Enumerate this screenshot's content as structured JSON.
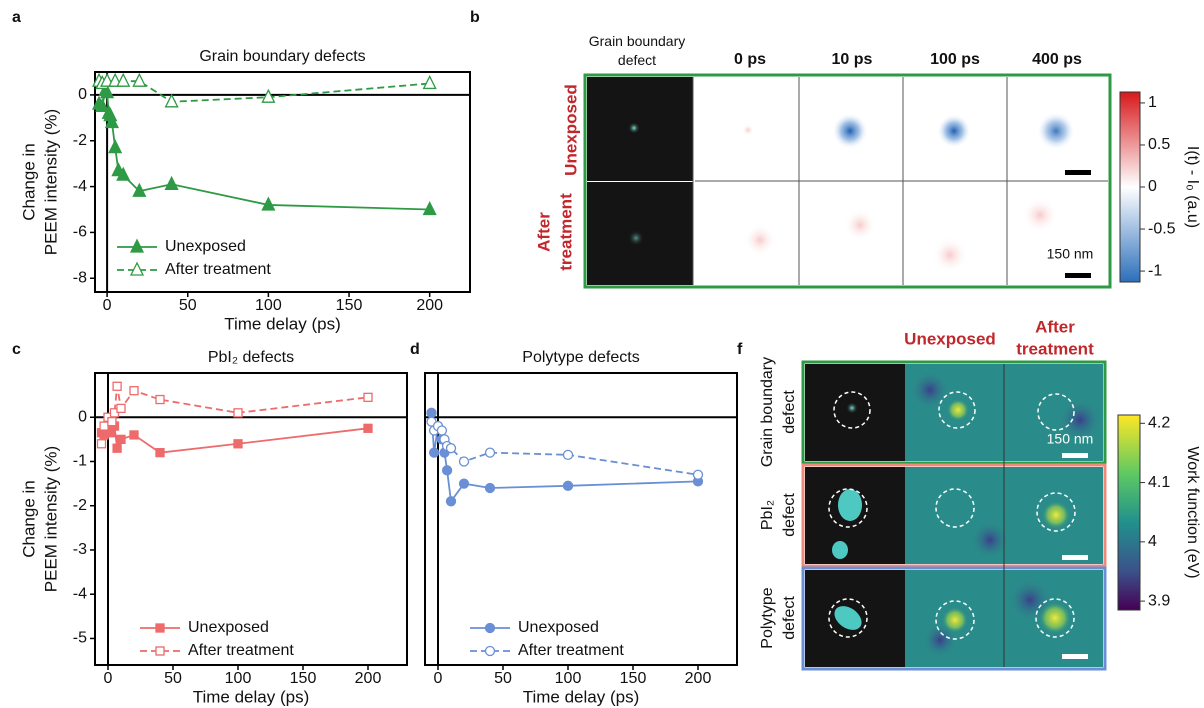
{
  "panel_labels": [
    "a",
    "b",
    "c",
    "d",
    "f"
  ],
  "chart_data": [
    {
      "type": "line",
      "title": "Grain boundary defects",
      "xlabel": "Time delay (ps)",
      "ylabel": [
        "Change in",
        "PEEM intensity (%)"
      ],
      "xlim": [
        -7.5,
        225
      ],
      "ylim": [
        -8.6,
        1
      ],
      "xticks": [
        0,
        50,
        100,
        150,
        200
      ],
      "yticks": [
        0,
        -2,
        -4,
        -6,
        -8
      ],
      "legend": "lower left",
      "series": [
        {
          "name": "Unexposed",
          "color": "#2e9a45",
          "marker": "triangle",
          "dashed": false,
          "x": [
            -5,
            -3,
            -1,
            0,
            1,
            2,
            3,
            5,
            7,
            10,
            20,
            40,
            100,
            200
          ],
          "values": [
            -0.4,
            -0.5,
            0.2,
            0.1,
            -0.8,
            -0.9,
            -1.2,
            -2.3,
            -3.3,
            -3.5,
            -4.2,
            -3.9,
            -4.8,
            -5.0
          ]
        },
        {
          "name": "After treatment",
          "color": "#2e9a45",
          "marker": "triangle",
          "dashed": true,
          "x": [
            -5,
            -3,
            0,
            5,
            10,
            20,
            40,
            100,
            200
          ],
          "values": [
            0.6,
            0.5,
            0.6,
            0.6,
            0.6,
            0.6,
            -0.3,
            -0.1,
            0.5
          ]
        }
      ]
    },
    {
      "type": "line",
      "title": "PbI₂ defects",
      "xlabel": "Time delay (ps)",
      "ylabel": [
        "Change in",
        "PEEM intensity (%)"
      ],
      "xlim": [
        -10,
        230
      ],
      "ylim": [
        -5.6,
        1
      ],
      "xticks": [
        0,
        50,
        100,
        150,
        200
      ],
      "yticks": [
        0,
        -1,
        -2,
        -3,
        -4,
        -5
      ],
      "legend": "lower left",
      "series": [
        {
          "name": "Unexposed",
          "color": "#ee6b6b",
          "marker": "square",
          "dashed": false,
          "x": [
            -5,
            -3,
            0,
            2,
            5,
            7,
            10,
            20,
            40,
            100,
            200
          ],
          "values": [
            -0.35,
            -0.4,
            -0.3,
            -0.35,
            -0.2,
            -0.7,
            -0.5,
            -0.4,
            -0.8,
            -0.6,
            -0.25
          ]
        },
        {
          "name": "After treatment",
          "color": "#ee6b6b",
          "marker": "square",
          "dashed": true,
          "x": [
            -5,
            -3,
            0,
            3,
            5,
            7,
            10,
            20,
            40,
            100,
            200
          ],
          "values": [
            -0.6,
            -0.2,
            0,
            -0.1,
            0.1,
            0.7,
            0.2,
            0.6,
            0.4,
            0.1,
            0.45
          ]
        }
      ]
    },
    {
      "type": "line",
      "title": "Polytype defects",
      "xlabel": "Time delay (ps)",
      "xlim": [
        -10,
        230
      ],
      "ylim": [
        -5.6,
        1
      ],
      "xticks": [
        0,
        50,
        100,
        150,
        200
      ],
      "legend": "lower left",
      "series": [
        {
          "name": "Unexposed",
          "color": "#6a8fd4",
          "marker": "circle",
          "dashed": false,
          "x": [
            -5,
            -3,
            0,
            3,
            5,
            7,
            10,
            20,
            40,
            100,
            200
          ],
          "values": [
            0.1,
            -0.8,
            -0.2,
            -0.5,
            -0.8,
            -1.2,
            -1.9,
            -1.5,
            -1.6,
            -1.55,
            -1.45
          ]
        },
        {
          "name": "After treatment",
          "color": "#6a8fd4",
          "marker": "circle",
          "dashed": true,
          "x": [
            -5,
            -3,
            0,
            3,
            5,
            7,
            10,
            20,
            40,
            100,
            200
          ],
          "values": [
            -0.1,
            -0.3,
            -0.2,
            -0.3,
            -0.5,
            -0.65,
            -0.7,
            -1.0,
            -0.8,
            -0.85,
            -1.3
          ]
        }
      ]
    }
  ],
  "panel_b": {
    "columns": [
      [
        "Grain boundary",
        "defect"
      ],
      "0 ps",
      "10 ps",
      "100 ps",
      "400 ps"
    ],
    "rows": [
      [
        "Unexposed"
      ],
      [
        "After",
        "treatment"
      ]
    ],
    "scale": "150 nm",
    "colorbar": {
      "label": "I(t) - I₀ (a.u)",
      "lim": [
        -1.13,
        1.13
      ],
      "ticks": [
        1,
        0.5,
        0,
        -0.5,
        -1
      ]
    }
  },
  "panel_f": {
    "columns": [
      "Unexposed",
      [
        "After",
        "treatment"
      ]
    ],
    "rows": [
      [
        "Grain boundary",
        "defect"
      ],
      [
        "PbI₂",
        "defect"
      ],
      [
        "Polytype",
        "defect"
      ]
    ],
    "scale": "150 nm",
    "colorbar": {
      "label": "Work function (eV)",
      "lim": [
        3.885,
        4.214
      ],
      "ticks": [
        4.2,
        4.1,
        4.0,
        3.9
      ]
    }
  }
}
